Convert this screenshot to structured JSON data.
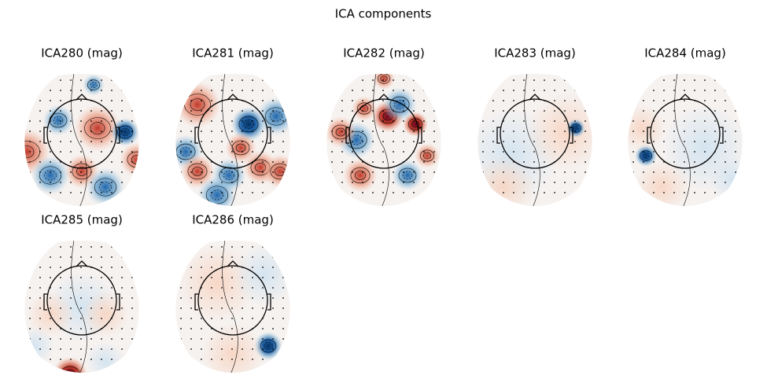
{
  "title": "ICA components",
  "panels": [
    {
      "title": "ICA280 (mag)"
    },
    {
      "title": "ICA281 (mag)"
    },
    {
      "title": "ICA282 (mag)"
    },
    {
      "title": "ICA283 (mag)"
    },
    {
      "title": "ICA284 (mag)"
    },
    {
      "title": "ICA285 (mag)"
    },
    {
      "title": "ICA286 (mag)"
    }
  ]
}
